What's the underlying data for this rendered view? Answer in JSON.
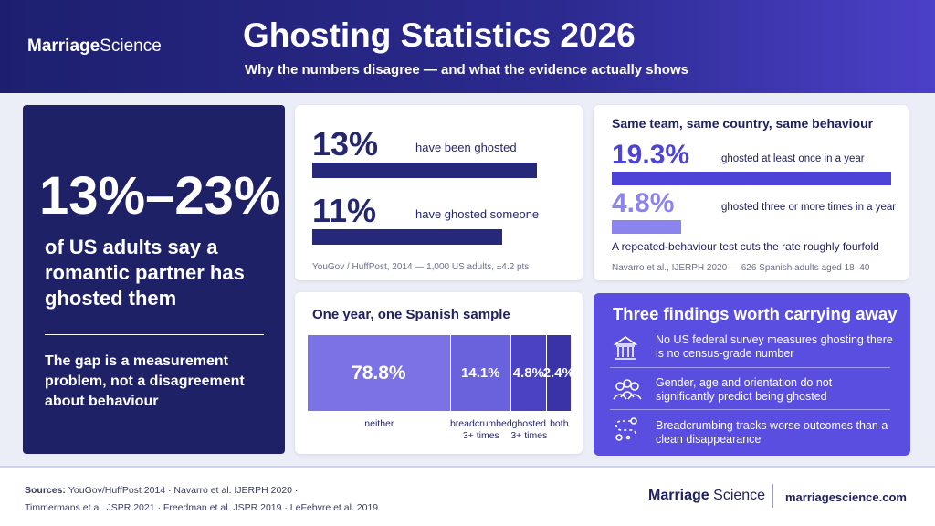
{
  "header": {
    "logo": {
      "bold": "Marriage",
      "light": "Science"
    },
    "title": "Ghosting Statistics 2026",
    "subtitle": "Why the numbers disagree — and what the evidence actually shows"
  },
  "hero": {
    "range": "13%–23%",
    "statement": "of US adults say a romantic partner has ghosted them",
    "note": "The gap is a measurement problem, not a disagreement about behaviour"
  },
  "yougov": {
    "items": [
      {
        "value": 13,
        "value_label": "13%",
        "label": "have been ghosted"
      },
      {
        "value": 11,
        "value_label": "11%",
        "label": "have ghosted someone"
      }
    ],
    "source": "YouGov / HuffPost, 2014 — 1,000 US adults, ±4.2 pts"
  },
  "navarro": {
    "title": "Same team, same country, same behaviour",
    "items": [
      {
        "value": 19.3,
        "value_label": "19.3%",
        "label": "ghosted at least once in a year"
      },
      {
        "value": 4.8,
        "value_label": "4.8%",
        "label": "ghosted three or more times in a year"
      }
    ],
    "note": "A repeated-behaviour test cuts the rate roughly fourfold",
    "source": "Navarro et al., IJERPH 2020 — 626 Spanish adults aged 18–40"
  },
  "sample": {
    "title": "One year, one Spanish sample",
    "segments": [
      {
        "value": 78.8,
        "value_label": "78.8%",
        "label": "neither",
        "color": "#7b72e6"
      },
      {
        "value": 14.1,
        "value_label": "14.1%",
        "label": "breadcrumbed 3+ times",
        "color": "#6a61dc"
      },
      {
        "value": 4.8,
        "value_label": "4.8%",
        "label": "ghosted 3+ times",
        "color": "#4a42c2"
      },
      {
        "value": 2.4,
        "value_label": "2.4%",
        "label": "both",
        "color": "#3a33a8"
      }
    ]
  },
  "findings": {
    "title": "Three findings worth carrying away",
    "items": [
      "No US federal survey measures ghosting there is no census-grade number",
      "Gender, age and orientation do not significantly predict being ghosted",
      "Breadcrumbing tracks worse outcomes than a clean disappearance"
    ]
  },
  "footer": {
    "sources_label": "Sources:",
    "sources": [
      "YouGov/HuffPost 2014 · Navarro et al. IJERPH 2020 ·",
      "Timmermans et al. JSPR 2021 · Freedman et al. JSPR 2019 · LeFebvre et al. 2019"
    ],
    "url": "marriagescience.com"
  }
}
